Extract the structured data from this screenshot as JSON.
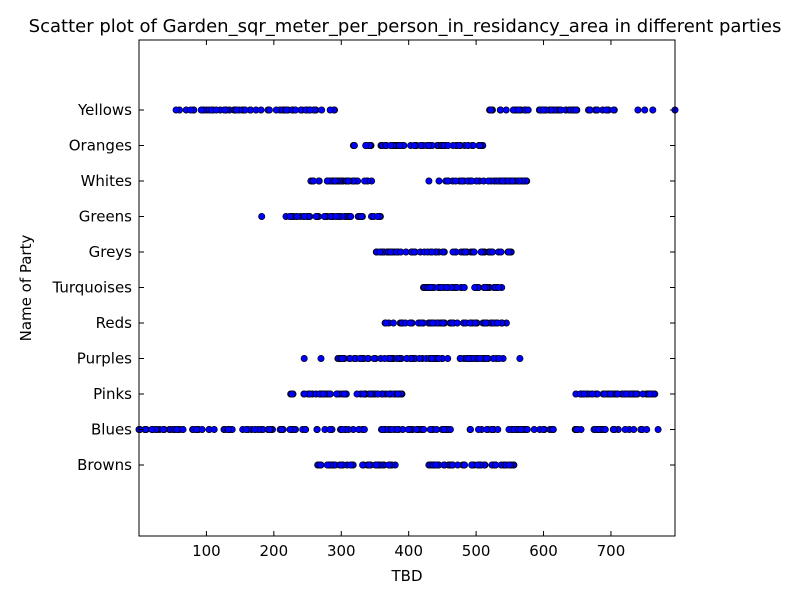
{
  "chart_data": {
    "type": "scatter",
    "title": "Scatter plot of Garden_sqr_meter_per_person_in_residancy_area in different parties",
    "xlabel": "TBD",
    "ylabel": "Name of Party",
    "xlim": [
      0,
      795
    ],
    "x_ticks": [
      100,
      200,
      300,
      400,
      500,
      600,
      700
    ],
    "categories": [
      "Browns",
      "Blues",
      "Pinks",
      "Purples",
      "Reds",
      "Turquoises",
      "Greys",
      "Greens",
      "Whites",
      "Oranges",
      "Yellows"
    ],
    "marker_color": "#0000ff",
    "series": [
      {
        "category": "Yellows",
        "ranges": [
          [
            55,
            290,
            55
          ],
          [
            520,
            705,
            60
          ]
        ],
        "values": [
          60,
          70,
          740,
          750,
          762,
          795
        ]
      },
      {
        "category": "Oranges",
        "ranges": [
          [
            318,
            510,
            70
          ]
        ],
        "values": []
      },
      {
        "category": "Whites",
        "ranges": [
          [
            255,
            345,
            30
          ],
          [
            455,
            575,
            45
          ]
        ],
        "values": [
          430,
          445
        ]
      },
      {
        "category": "Greens",
        "ranges": [
          [
            218,
            358,
            45
          ]
        ],
        "values": [
          182
        ]
      },
      {
        "category": "Greys",
        "ranges": [
          [
            352,
            552,
            65
          ]
        ],
        "values": []
      },
      {
        "category": "Turquoises",
        "ranges": [
          [
            422,
            538,
            40
          ]
        ],
        "values": []
      },
      {
        "category": "Reds",
        "ranges": [
          [
            365,
            545,
            60
          ]
        ],
        "values": []
      },
      {
        "category": "Purples",
        "ranges": [
          [
            295,
            540,
            80
          ]
        ],
        "values": [
          245,
          270,
          565
        ]
      },
      {
        "category": "Pinks",
        "ranges": [
          [
            225,
            390,
            55
          ],
          [
            648,
            765,
            45
          ]
        ],
        "values": []
      },
      {
        "category": "Blues",
        "ranges": [
          [
            0,
            770,
            180
          ]
        ],
        "values": []
      },
      {
        "category": "Browns",
        "ranges": [
          [
            265,
            380,
            40
          ],
          [
            430,
            556,
            45
          ]
        ],
        "values": []
      }
    ]
  }
}
